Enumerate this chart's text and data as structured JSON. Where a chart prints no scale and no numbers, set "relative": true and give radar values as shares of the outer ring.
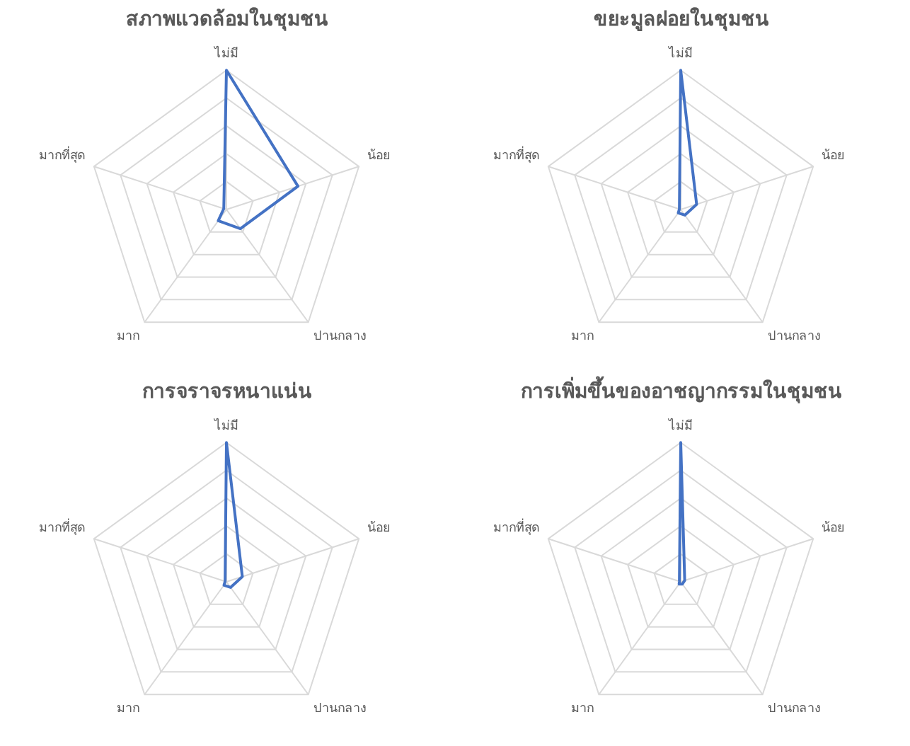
{
  "chart_data": [
    {
      "type": "radar",
      "title": "สภาพแวดล้อมในชุมชน",
      "categories": [
        "ไม่มี",
        "น้อย",
        "ปานกลาง",
        "มาก",
        "มากที่สุด"
      ],
      "relative": true,
      "grid": true,
      "legend": false,
      "marker": "none",
      "series": [
        {
          "color": "#4472c4",
          "values": [
            1,
            0.54,
            0.17,
            0.1,
            0.02
          ]
        }
      ]
    },
    {
      "type": "radar",
      "title": "ขยะมูลฝอยในชุมชน",
      "categories": [
        "ไม่มี",
        "น้อย",
        "ปานกลาง",
        "มาก",
        "มากที่สุด"
      ],
      "relative": true,
      "grid": true,
      "legend": false,
      "marker": "none",
      "series": [
        {
          "color": "#4472c4",
          "values": [
            1,
            0.12,
            0.05,
            0.03,
            0.01
          ]
        }
      ]
    },
    {
      "type": "radar",
      "title": "การจราจรหนาแน่น",
      "categories": [
        "ไม่มี",
        "น้อย",
        "ปานกลาง",
        "มาก",
        "มากที่สุด"
      ],
      "relative": true,
      "grid": true,
      "legend": false,
      "marker": "none",
      "series": [
        {
          "color": "#4472c4",
          "values": [
            1,
            0.12,
            0.05,
            0.03,
            0.01
          ]
        }
      ]
    },
    {
      "type": "radar",
      "title": "การเพิ่มขึ้นของอาชญากรรมในชุมชน",
      "categories": [
        "ไม่มี",
        "น้อย",
        "ปานกลาง",
        "มาก",
        "มากที่สุด"
      ],
      "relative": true,
      "grid": true,
      "legend": false,
      "marker": "none",
      "series": [
        {
          "color": "#4472c4",
          "values": [
            1,
            0.03,
            0.02,
            0.02,
            0.01
          ]
        }
      ]
    }
  ]
}
